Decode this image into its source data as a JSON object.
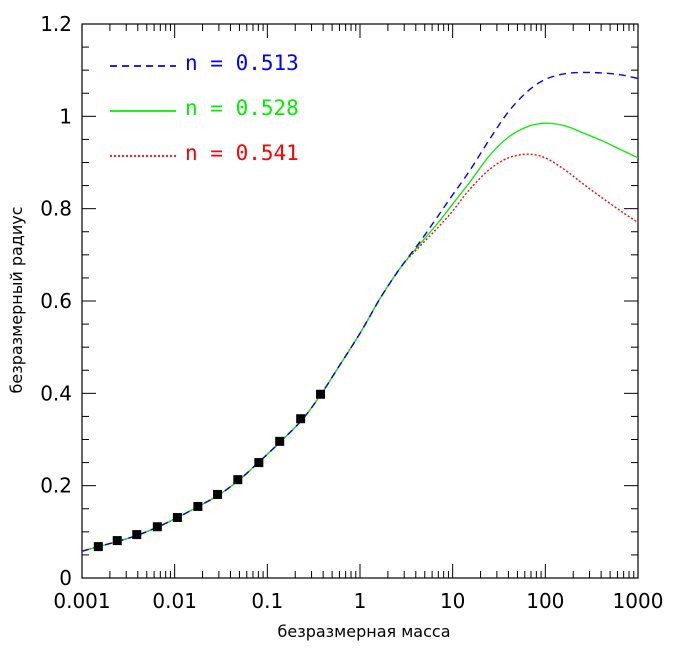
{
  "chart_data": {
    "type": "line",
    "xlabel": "безразмерная масса",
    "ylabel": "безразмерный радиус",
    "xscale": "log",
    "xlim": [
      0.001,
      1000
    ],
    "ylim": [
      0,
      1.2
    ],
    "x_ticks": [
      0.001,
      0.01,
      0.1,
      1,
      10,
      100,
      1000
    ],
    "x_tick_labels": [
      "0.001",
      "0.01",
      "0.1",
      "1",
      "10",
      "100",
      "1000"
    ],
    "y_ticks": [
      0,
      0.2,
      0.4,
      0.6,
      0.8,
      1,
      1.2
    ],
    "y_tick_labels": [
      "0",
      "0.2",
      "0.4",
      "0.6",
      "0.8",
      "1",
      "1.2"
    ],
    "grid": false,
    "legend_position": "top-left",
    "series": [
      {
        "name": "n = 0.513",
        "color": "#0000ff",
        "style": "dashed",
        "x": [
          0.001,
          0.0015,
          0.0025,
          0.004,
          0.0065,
          0.0105,
          0.018,
          0.03,
          0.05,
          0.08,
          0.14,
          0.24,
          0.38,
          0.6,
          1,
          1.7,
          2.8,
          4.5,
          7,
          10,
          15,
          25,
          40,
          65,
          100,
          160,
          250,
          400,
          650,
          1000
        ],
        "y": [
          0.058,
          0.068,
          0.08,
          0.093,
          0.11,
          0.13,
          0.155,
          0.18,
          0.213,
          0.25,
          0.296,
          0.344,
          0.398,
          0.46,
          0.53,
          0.61,
          0.675,
          0.73,
          0.785,
          0.83,
          0.88,
          0.95,
          1.01,
          1.055,
          1.08,
          1.092,
          1.095,
          1.094,
          1.09,
          1.082
        ]
      },
      {
        "name": "n = 0.528",
        "color": "#00ee00",
        "style": "solid",
        "x": [
          0.001,
          0.0015,
          0.0025,
          0.004,
          0.0065,
          0.0105,
          0.018,
          0.03,
          0.05,
          0.08,
          0.14,
          0.24,
          0.38,
          0.6,
          1,
          1.7,
          2.8,
          4.5,
          7,
          10,
          15,
          25,
          40,
          65,
          100,
          160,
          250,
          400,
          650,
          1000
        ],
        "y": [
          0.058,
          0.068,
          0.08,
          0.093,
          0.11,
          0.13,
          0.155,
          0.18,
          0.213,
          0.25,
          0.296,
          0.344,
          0.398,
          0.46,
          0.53,
          0.61,
          0.675,
          0.725,
          0.77,
          0.81,
          0.855,
          0.915,
          0.955,
          0.978,
          0.985,
          0.98,
          0.965,
          0.948,
          0.928,
          0.91
        ]
      },
      {
        "name": "n = 0.541",
        "color": "#ff0000",
        "style": "dotted",
        "x": [
          0.001,
          0.0015,
          0.0025,
          0.004,
          0.0065,
          0.0105,
          0.018,
          0.03,
          0.05,
          0.08,
          0.14,
          0.24,
          0.38,
          0.6,
          1,
          1.7,
          2.8,
          4.5,
          7,
          10,
          15,
          25,
          40,
          65,
          100,
          160,
          250,
          400,
          650,
          1000
        ],
        "y": [
          0.058,
          0.068,
          0.08,
          0.093,
          0.11,
          0.13,
          0.155,
          0.18,
          0.213,
          0.25,
          0.296,
          0.344,
          0.398,
          0.46,
          0.53,
          0.61,
          0.675,
          0.72,
          0.76,
          0.795,
          0.84,
          0.885,
          0.91,
          0.918,
          0.91,
          0.885,
          0.855,
          0.825,
          0.795,
          0.77
        ]
      },
      {
        "name": "",
        "color": "#000000",
        "style": "markers",
        "marker": "square",
        "x": [
          0.0015,
          0.0024,
          0.0039,
          0.0065,
          0.0107,
          0.0178,
          0.029,
          0.048,
          0.081,
          0.136,
          0.229,
          0.375
        ],
        "y": [
          0.068,
          0.081,
          0.094,
          0.111,
          0.131,
          0.155,
          0.181,
          0.213,
          0.25,
          0.296,
          0.345,
          0.398
        ]
      }
    ]
  }
}
